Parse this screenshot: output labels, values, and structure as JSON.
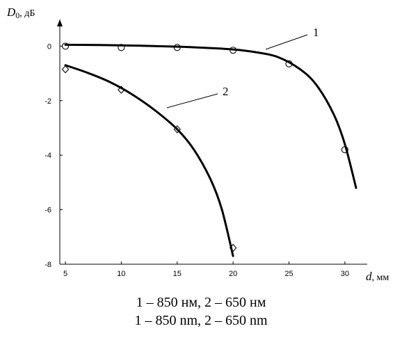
{
  "chart_data": {
    "type": "line",
    "y_axis_label": {
      "symbol": "D",
      "subscript": "0",
      "unit": ", дБ"
    },
    "x_axis_label": {
      "symbol": "d",
      "unit": ", мм"
    },
    "xlim": [
      4.5,
      31.5
    ],
    "ylim": [
      -8,
      0.8
    ],
    "x_ticks": [
      5,
      10,
      15,
      20,
      25,
      30
    ],
    "y_ticks": [
      0,
      -2,
      -4,
      -6,
      -8
    ],
    "grid": false,
    "series": [
      {
        "name": "1",
        "marker": "circle",
        "points": {
          "x": [
            5,
            10,
            15,
            20,
            25,
            30
          ],
          "y": [
            0,
            -0.05,
            -0.05,
            -0.15,
            -0.65,
            -3.8
          ]
        },
        "curve": {
          "x": [
            5,
            10,
            15,
            18,
            20,
            22,
            24,
            26,
            27.5,
            29,
            30,
            31
          ],
          "y": [
            0.05,
            0.03,
            -0.02,
            -0.07,
            -0.12,
            -0.22,
            -0.4,
            -0.85,
            -1.45,
            -2.5,
            -3.6,
            -5.2
          ]
        }
      },
      {
        "name": "2",
        "marker": "diamond",
        "points": {
          "x": [
            5,
            10,
            15,
            20
          ],
          "y": [
            -0.85,
            -1.6,
            -3.05,
            -7.4
          ]
        },
        "curve": {
          "x": [
            5,
            7,
            9,
            11,
            13,
            15,
            16.5,
            18,
            19,
            20
          ],
          "y": [
            -0.7,
            -0.98,
            -1.32,
            -1.78,
            -2.35,
            -3.05,
            -3.8,
            -4.9,
            -6.0,
            -7.7
          ]
        }
      }
    ]
  },
  "captions": {
    "line1": "1 – 850 нм, 2 – 650 нм",
    "line2": "1 – 850 nm, 2 – 650 nm"
  }
}
